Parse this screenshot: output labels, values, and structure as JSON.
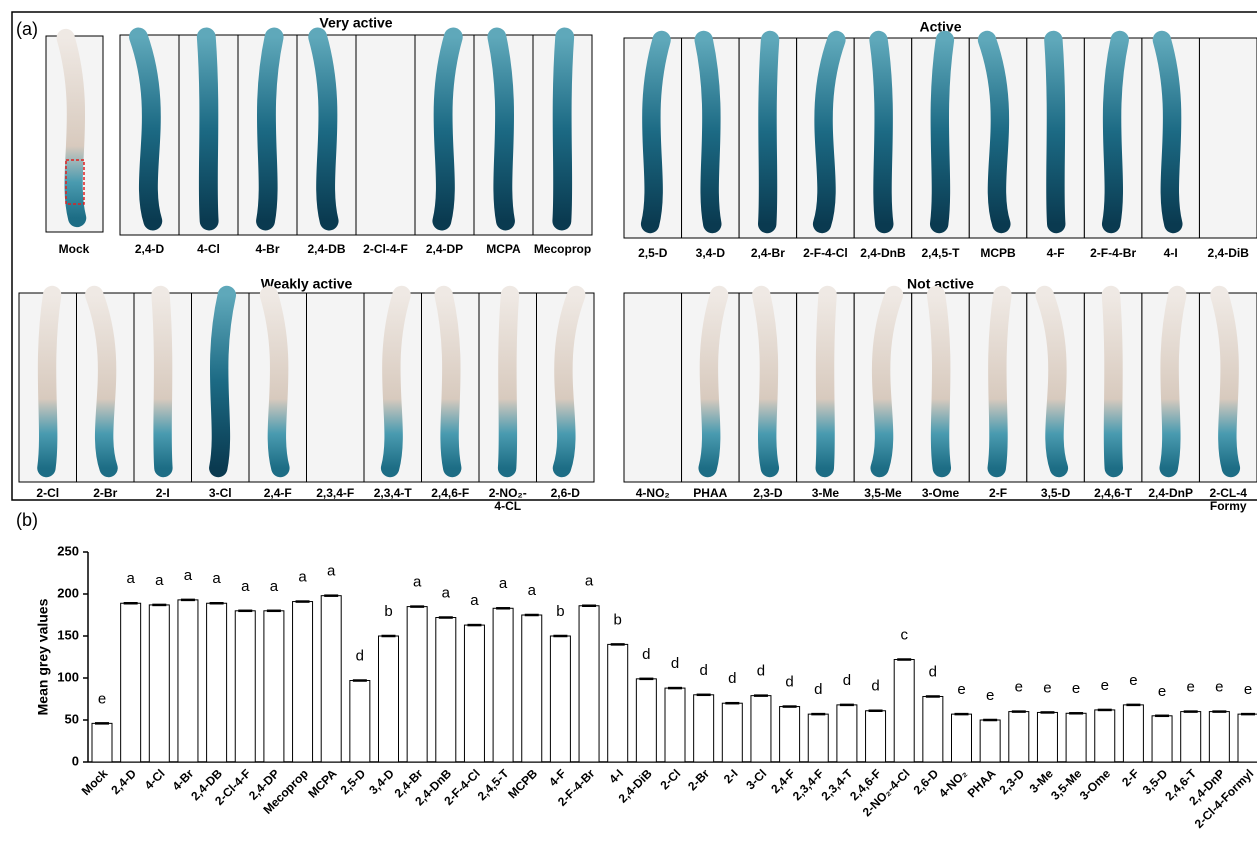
{
  "panel_a": {
    "label": "(a)",
    "mock": "Mock",
    "groups": [
      {
        "title": "Very active",
        "labels": [
          "2,4-D",
          "4-Cl",
          "4-Br",
          "2,4-DB",
          "2-Cl-4-F",
          "2,4-DP",
          "MCPA",
          "Mecoprop"
        ]
      },
      {
        "title": "Active",
        "labels": [
          "2,5-D",
          "3,4-D",
          "2,4-Br",
          "2-F-4-Cl",
          "2,4-DnB",
          "2,4,5-T",
          "MCPB",
          "4-F",
          "2-F-4-Br",
          "4-I",
          "2,4-DiB"
        ]
      },
      {
        "title": "Weakly active",
        "labels": [
          "2-Cl",
          "2-Br",
          "2-I",
          "3-Cl",
          "2,4-F",
          "2,3,4-F",
          "2,3,4-T",
          "2,4,6-F",
          [
            "2-NO₂-",
            "4-CL"
          ],
          "2,6-D"
        ]
      },
      {
        "title": "Not active",
        "labels": [
          "4-NO₂",
          "PHAA",
          "2,3-D",
          "3-Me",
          "3,5-Me",
          "3-Ome",
          "2-F",
          "3,5-D",
          "2,4,6-T",
          "2,4-DnP",
          [
            "2-CL-4",
            "Formy"
          ]
        ]
      }
    ]
  },
  "chart_data": {
    "type": "bar",
    "panel_label": "(b)",
    "y_label": "Mean grey values",
    "categories": [
      "Mock",
      "2,4-D",
      "4-Cl",
      "4-Br",
      "2,4-DB",
      "2-Cl-4-F",
      "2,4-DP",
      "Mecoprop",
      "MCPA",
      "2,5-D",
      "3,4-D",
      "2,4-Br",
      "2,4-DnB",
      "2-F-4-Cl",
      "2,4,5-T",
      "MCPB",
      "4-F",
      "2-F-4-Br",
      "4-I",
      "2,4-DiB",
      "2-Cl",
      "2-Br",
      "2-I",
      "3-Cl",
      "2,4-F",
      "2,3,4-F",
      "2,3,4-T",
      "2,4,6-F",
      "2-NO₂-4-Cl",
      "2,6-D",
      "4-NO₂",
      "PHAA",
      "2,3-D",
      "3-Me",
      "3,5-Me",
      "3-Ome",
      "2-F",
      "3,5-D",
      "2,4,6-T",
      "2,4-DnP",
      "2-Cl-4-Formyl"
    ],
    "values": [
      46,
      189,
      187,
      193,
      189,
      180,
      180,
      191,
      198,
      97,
      150,
      185,
      172,
      163,
      183,
      175,
      150,
      186,
      140,
      99,
      88,
      80,
      70,
      79,
      66,
      57,
      68,
      61,
      122,
      78,
      57,
      50,
      60,
      59,
      58,
      62,
      68,
      55,
      60,
      60,
      57
    ],
    "letters": [
      "e",
      "a",
      "a",
      "a",
      "a",
      "a",
      "a",
      "a",
      "a",
      "d",
      "b",
      "a",
      "a",
      "a",
      "a",
      "a",
      "b",
      "a",
      "b",
      "d",
      "d",
      "d",
      "d",
      "d",
      "d",
      "d",
      "d",
      "d",
      "c",
      "d",
      "e",
      "e",
      "e",
      "e",
      "e",
      "e",
      "e",
      "e",
      "e",
      "e",
      "e"
    ],
    "color": "#ffffff",
    "point_color": "#f07f2a",
    "ylim": [
      0,
      250
    ],
    "yticks": [
      0,
      50,
      100,
      150,
      200,
      250
    ]
  }
}
